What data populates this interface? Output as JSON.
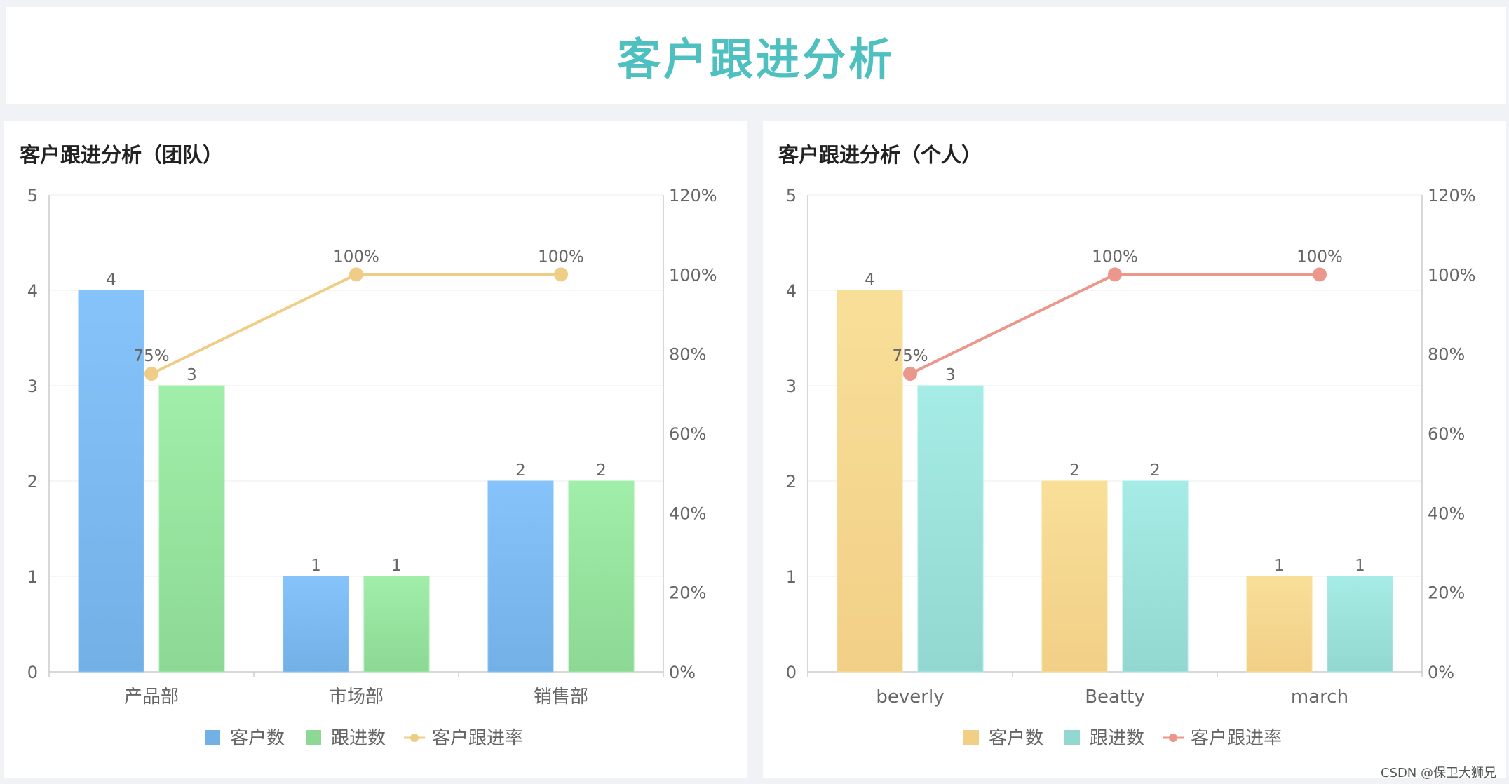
{
  "header": {
    "title": "客户跟进分析"
  },
  "watermark": "CSDN @保卫大狮兄",
  "panels": [
    {
      "title": "客户跟进分析（团队）",
      "chart_data": {
        "type": "bar",
        "categories": [
          "产品部",
          "市场部",
          "销售部"
        ],
        "series": [
          {
            "name": "客户数",
            "kind": "bar",
            "axis": "left",
            "values": [
              4,
              1,
              2
            ],
            "color_top": "#85c3fa",
            "color_bottom": "#72b0e6"
          },
          {
            "name": "跟进数",
            "kind": "bar",
            "axis": "left",
            "values": [
              3,
              1,
              2
            ],
            "color_top": "#a0eea9",
            "color_bottom": "#8cd894"
          },
          {
            "name": "客户跟进率",
            "kind": "line",
            "axis": "right",
            "values": [
              75,
              100,
              100
            ],
            "value_labels": [
              "75%",
              "100%",
              "100%"
            ],
            "color": "#f0cd86"
          }
        ],
        "y_left": {
          "min": 0,
          "max": 5,
          "ticks": [
            "0",
            "1",
            "2",
            "3",
            "4",
            "5"
          ]
        },
        "y_right": {
          "min": 0,
          "max": 120,
          "ticks": [
            "0%",
            "20%",
            "40%",
            "60%",
            "80%",
            "100%",
            "120%"
          ]
        },
        "grid": true,
        "legend": "bottom-center"
      }
    },
    {
      "title": "客户跟进分析（个人）",
      "chart_data": {
        "type": "bar",
        "categories": [
          "beverly",
          "Beatty",
          "march"
        ],
        "series": [
          {
            "name": "客户数",
            "kind": "bar",
            "axis": "left",
            "values": [
              4,
              2,
              1
            ],
            "color_top": "#f8df98",
            "color_bottom": "#f2cf87"
          },
          {
            "name": "跟进数",
            "kind": "bar",
            "axis": "left",
            "values": [
              3,
              2,
              1
            ],
            "color_top": "#a6ece6",
            "color_bottom": "#92d8d0"
          },
          {
            "name": "客户跟进率",
            "kind": "line",
            "axis": "right",
            "values": [
              75,
              100,
              100
            ],
            "value_labels": [
              "75%",
              "100%",
              "100%"
            ],
            "color": "#ec978b"
          }
        ],
        "y_left": {
          "min": 0,
          "max": 5,
          "ticks": [
            "0",
            "1",
            "2",
            "3",
            "4",
            "5"
          ]
        },
        "y_right": {
          "min": 0,
          "max": 120,
          "ticks": [
            "0%",
            "20%",
            "40%",
            "60%",
            "80%",
            "100%",
            "120%"
          ]
        },
        "grid": true,
        "legend": "bottom-center"
      }
    }
  ]
}
